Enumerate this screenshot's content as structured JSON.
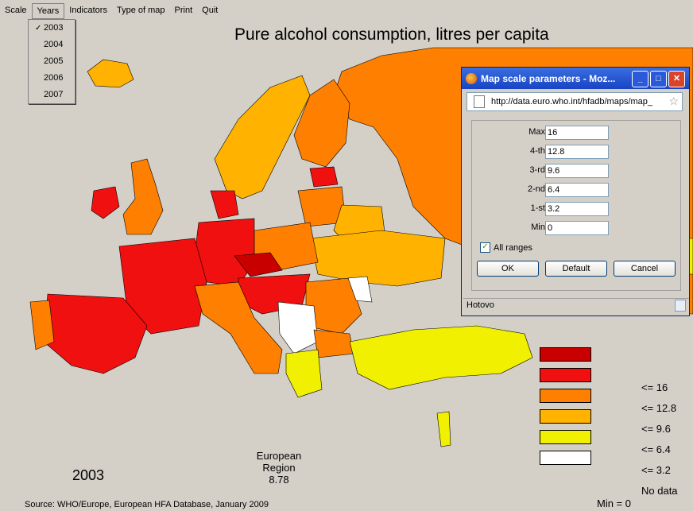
{
  "menu": [
    "Scale",
    "Years",
    "Indicators",
    "Type of map",
    "Print",
    "Quit"
  ],
  "years_menu": {
    "selected": "2003",
    "options": [
      "2003",
      "2004",
      "2005",
      "2006",
      "2007"
    ]
  },
  "title": "Pure alcohol consumption, litres per capita",
  "legend": {
    "labels": [
      "<= 16",
      "<= 12.8",
      "<= 9.6",
      "<= 6.4",
      "<= 3.2",
      "No data"
    ],
    "colors": [
      "#c80000",
      "#f01010",
      "#ff7f00",
      "#ffb300",
      "#f0f000",
      "#ffffff"
    ]
  },
  "region_label": "European Region",
  "region_value": "8.78",
  "year_label": "2003",
  "source": "Source: WHO/Europe, European HFA Database, January 2009",
  "min_label": "Min = 0",
  "dialog": {
    "title": "Map scale parameters - Moz...",
    "url": "http://data.euro.who.int/hfadb/maps/map_",
    "fields": [
      {
        "label": "Max",
        "value": "16"
      },
      {
        "label": "4-th",
        "value": "12.8"
      },
      {
        "label": "3-rd",
        "value": "9.6"
      },
      {
        "label": "2-nd",
        "value": "6.4"
      },
      {
        "label": "1-st",
        "value": "3.2"
      },
      {
        "label": "Min",
        "value": "0"
      }
    ],
    "all_ranges_label": "All ranges",
    "all_ranges_checked": true,
    "ok_label": "OK",
    "default_label": "Default",
    "cancel_label": "Cancel",
    "status": "Hotovo"
  }
}
